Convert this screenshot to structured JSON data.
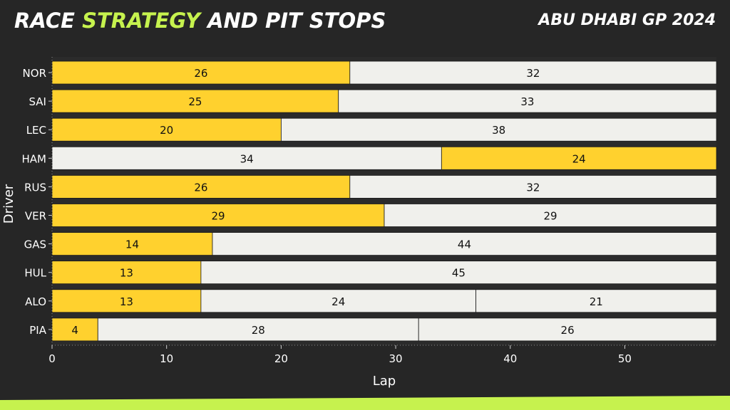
{
  "header": {
    "title_part1": "RACE ",
    "title_accent": "STRATEGY",
    "title_part2": " AND PIT STOPS",
    "event": "ABU DHABI GP 2024"
  },
  "colors": {
    "background": "#262626",
    "plot_bg": "#2b2b2b",
    "accent": "#c6f24e",
    "medium": "#ffd12e",
    "hard": "#f0f0ec"
  },
  "chart_data": {
    "type": "bar",
    "orientation": "horizontal-stacked",
    "xlabel": "Lap",
    "ylabel": "Driver",
    "xlim": [
      0,
      58
    ],
    "xticks": [
      0,
      10,
      20,
      30,
      40,
      50
    ],
    "grid": false,
    "drivers": [
      {
        "driver": "NOR",
        "stints": [
          {
            "laps": 26,
            "compound": "medium"
          },
          {
            "laps": 32,
            "compound": "hard"
          }
        ]
      },
      {
        "driver": "SAI",
        "stints": [
          {
            "laps": 25,
            "compound": "medium"
          },
          {
            "laps": 33,
            "compound": "hard"
          }
        ]
      },
      {
        "driver": "LEC",
        "stints": [
          {
            "laps": 20,
            "compound": "medium"
          },
          {
            "laps": 38,
            "compound": "hard"
          }
        ]
      },
      {
        "driver": "HAM",
        "stints": [
          {
            "laps": 34,
            "compound": "hard"
          },
          {
            "laps": 24,
            "compound": "medium"
          }
        ]
      },
      {
        "driver": "RUS",
        "stints": [
          {
            "laps": 26,
            "compound": "medium"
          },
          {
            "laps": 32,
            "compound": "hard"
          }
        ]
      },
      {
        "driver": "VER",
        "stints": [
          {
            "laps": 29,
            "compound": "medium"
          },
          {
            "laps": 29,
            "compound": "hard"
          }
        ]
      },
      {
        "driver": "GAS",
        "stints": [
          {
            "laps": 14,
            "compound": "medium"
          },
          {
            "laps": 44,
            "compound": "hard"
          }
        ]
      },
      {
        "driver": "HUL",
        "stints": [
          {
            "laps": 13,
            "compound": "medium"
          },
          {
            "laps": 45,
            "compound": "hard"
          }
        ]
      },
      {
        "driver": "ALO",
        "stints": [
          {
            "laps": 13,
            "compound": "medium"
          },
          {
            "laps": 24,
            "compound": "hard"
          },
          {
            "laps": 21,
            "compound": "hard"
          }
        ]
      },
      {
        "driver": "PIA",
        "stints": [
          {
            "laps": 4,
            "compound": "medium"
          },
          {
            "laps": 28,
            "compound": "hard"
          },
          {
            "laps": 26,
            "compound": "hard"
          }
        ]
      }
    ]
  }
}
